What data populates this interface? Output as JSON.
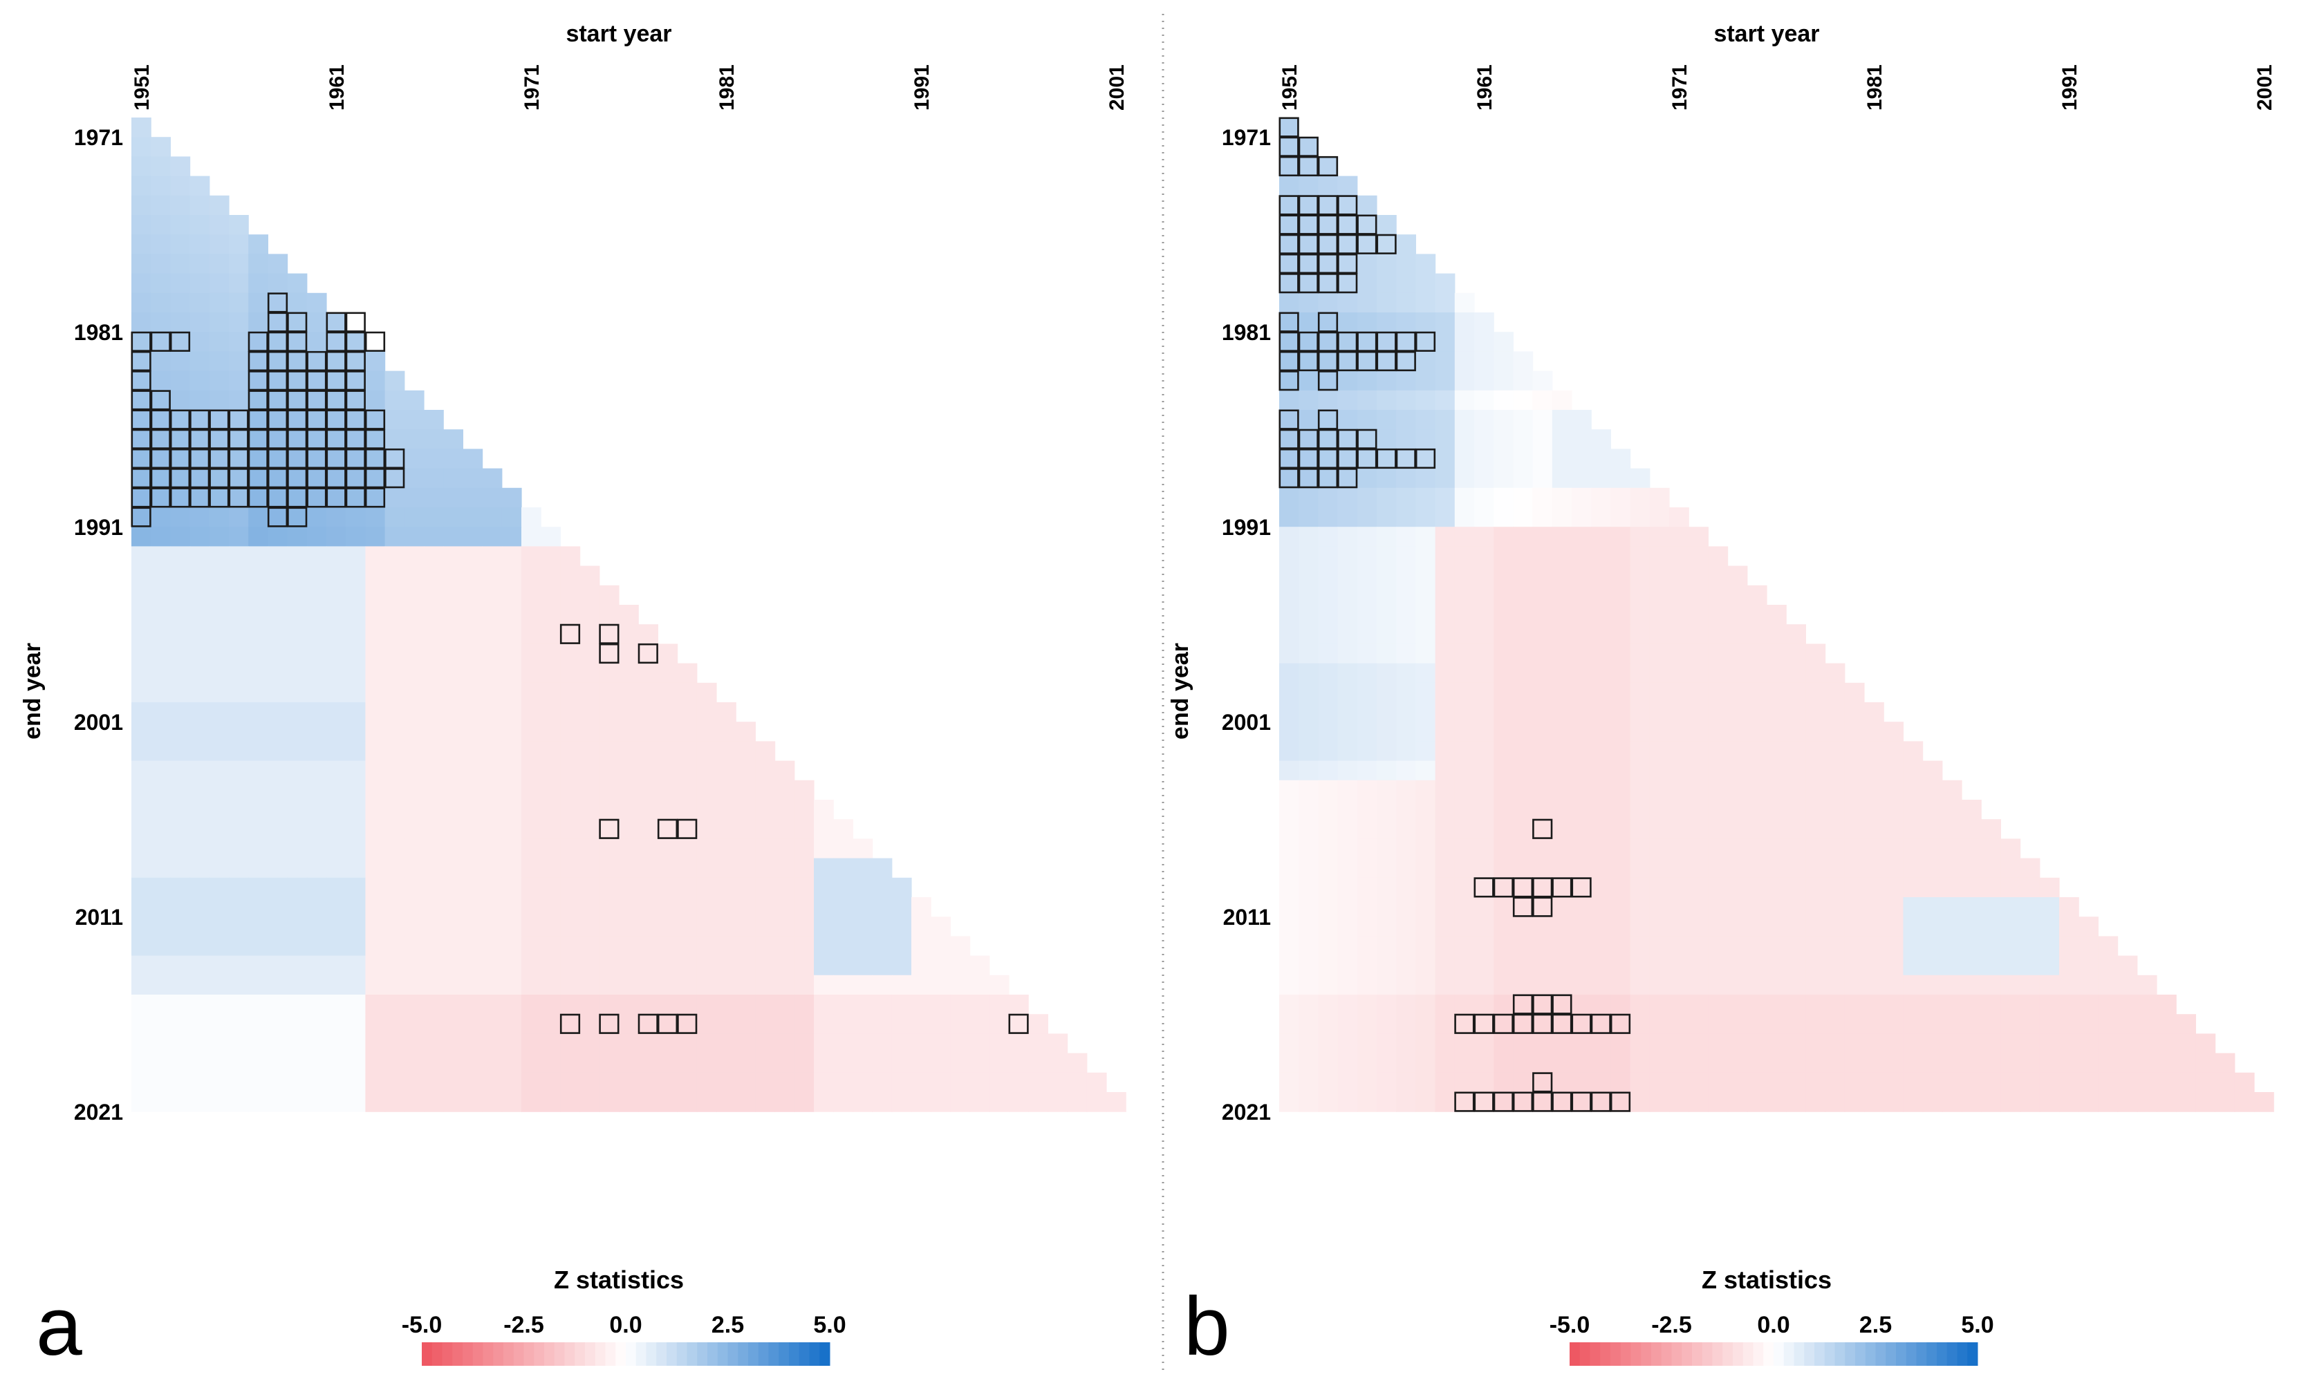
{
  "figure": {
    "panels": [
      {
        "panel_label": "a",
        "chart_data": {
          "type": "heatmap",
          "title": "",
          "xlabel": "start year",
          "ylabel": "end year",
          "x_range": [
            1951,
            2001
          ],
          "y_range": [
            1971,
            2021
          ],
          "x_ticks": [
            "1951",
            "1961",
            "1971",
            "1981",
            "1991",
            "2001"
          ],
          "y_ticks": [
            "1971",
            "1981",
            "1991",
            "2001",
            "2011",
            "2021"
          ],
          "colorbar_title": "Z statistics",
          "colorbar_ticks": [
            "-5.0",
            "-2.5",
            "0.0",
            "2.5",
            "5.0"
          ],
          "colorbar_range": [
            -5,
            5
          ],
          "significant_cells": [
            [
              1981,
              1951
            ],
            [
              1981,
              1952
            ],
            [
              1981,
              1953
            ],
            [
              1981,
              1957
            ],
            [
              1981,
              1958
            ],
            [
              1981,
              1959
            ],
            [
              1981,
              1961
            ],
            [
              1981,
              1962
            ],
            [
              1981,
              1963
            ],
            [
              1980,
              1958
            ],
            [
              1980,
              1959
            ],
            [
              1980,
              1961
            ],
            [
              1980,
              1962
            ],
            [
              1979,
              1958
            ],
            [
              1982,
              1951
            ],
            [
              1982,
              1957
            ],
            [
              1982,
              1958
            ],
            [
              1982,
              1959
            ],
            [
              1982,
              1960
            ],
            [
              1982,
              1961
            ],
            [
              1982,
              1962
            ],
            [
              1983,
              1951
            ],
            [
              1983,
              1957
            ],
            [
              1983,
              1958
            ],
            [
              1983,
              1959
            ],
            [
              1983,
              1960
            ],
            [
              1983,
              1961
            ],
            [
              1983,
              1962
            ],
            [
              1984,
              1951
            ],
            [
              1984,
              1952
            ],
            [
              1984,
              1957
            ],
            [
              1984,
              1958
            ],
            [
              1984,
              1959
            ],
            [
              1984,
              1960
            ],
            [
              1984,
              1961
            ],
            [
              1984,
              1962
            ],
            [
              1985,
              1951
            ],
            [
              1985,
              1952
            ],
            [
              1985,
              1953
            ],
            [
              1985,
              1954
            ],
            [
              1985,
              1955
            ],
            [
              1985,
              1956
            ],
            [
              1985,
              1957
            ],
            [
              1985,
              1958
            ],
            [
              1985,
              1959
            ],
            [
              1985,
              1960
            ],
            [
              1985,
              1961
            ],
            [
              1985,
              1962
            ],
            [
              1985,
              1963
            ],
            [
              1986,
              1951
            ],
            [
              1986,
              1952
            ],
            [
              1986,
              1953
            ],
            [
              1986,
              1954
            ],
            [
              1986,
              1955
            ],
            [
              1986,
              1956
            ],
            [
              1986,
              1957
            ],
            [
              1986,
              1958
            ],
            [
              1986,
              1959
            ],
            [
              1986,
              1960
            ],
            [
              1986,
              1961
            ],
            [
              1986,
              1962
            ],
            [
              1986,
              1963
            ],
            [
              1987,
              1951
            ],
            [
              1987,
              1952
            ],
            [
              1987,
              1953
            ],
            [
              1987,
              1954
            ],
            [
              1987,
              1955
            ],
            [
              1987,
              1956
            ],
            [
              1987,
              1957
            ],
            [
              1987,
              1958
            ],
            [
              1987,
              1959
            ],
            [
              1987,
              1960
            ],
            [
              1987,
              1961
            ],
            [
              1987,
              1962
            ],
            [
              1987,
              1963
            ],
            [
              1987,
              1964
            ],
            [
              1988,
              1951
            ],
            [
              1988,
              1952
            ],
            [
              1988,
              1953
            ],
            [
              1988,
              1954
            ],
            [
              1988,
              1955
            ],
            [
              1988,
              1956
            ],
            [
              1988,
              1957
            ],
            [
              1988,
              1958
            ],
            [
              1988,
              1959
            ],
            [
              1988,
              1960
            ],
            [
              1988,
              1961
            ],
            [
              1988,
              1962
            ],
            [
              1988,
              1963
            ],
            [
              1988,
              1964
            ],
            [
              1989,
              1951
            ],
            [
              1989,
              1952
            ],
            [
              1989,
              1953
            ],
            [
              1989,
              1954
            ],
            [
              1989,
              1955
            ],
            [
              1989,
              1956
            ],
            [
              1989,
              1957
            ],
            [
              1989,
              1958
            ],
            [
              1989,
              1959
            ],
            [
              1989,
              1960
            ],
            [
              1989,
              1961
            ],
            [
              1989,
              1962
            ],
            [
              1989,
              1963
            ],
            [
              1990,
              1951
            ],
            [
              1990,
              1958
            ],
            [
              1990,
              1959
            ],
            [
              1996,
              1973
            ],
            [
              1996,
              1975
            ],
            [
              1997,
              1975
            ],
            [
              1997,
              1977
            ],
            [
              2006,
              1975
            ],
            [
              2006,
              1978
            ],
            [
              2006,
              1979
            ],
            [
              2016,
              1973
            ],
            [
              2016,
              1975
            ],
            [
              2016,
              1977
            ],
            [
              2016,
              1978
            ],
            [
              2016,
              1979
            ],
            [
              2016,
              1996
            ]
          ]
        }
      },
      {
        "panel_label": "b",
        "chart_data": {
          "type": "heatmap",
          "title": "",
          "xlabel": "start year",
          "ylabel": "end year",
          "x_range": [
            1951,
            2001
          ],
          "y_range": [
            1971,
            2021
          ],
          "x_ticks": [
            "1951",
            "1961",
            "1971",
            "1981",
            "1991",
            "2001"
          ],
          "y_ticks": [
            "1971",
            "1981",
            "1991",
            "2001",
            "2011",
            "2021"
          ],
          "colorbar_title": "Z statistics",
          "colorbar_ticks": [
            "-5.0",
            "-2.5",
            "0.0",
            "2.5",
            "5.0"
          ],
          "colorbar_range": [
            -5,
            5
          ],
          "significant_cells": [
            [
              1970,
              1951
            ],
            [
              1971,
              1951
            ],
            [
              1971,
              1952
            ],
            [
              1972,
              1951
            ],
            [
              1972,
              1952
            ],
            [
              1972,
              1953
            ],
            [
              1974,
              1951
            ],
            [
              1974,
              1952
            ],
            [
              1974,
              1953
            ],
            [
              1974,
              1954
            ],
            [
              1975,
              1951
            ],
            [
              1975,
              1952
            ],
            [
              1975,
              1953
            ],
            [
              1975,
              1954
            ],
            [
              1975,
              1955
            ],
            [
              1976,
              1951
            ],
            [
              1976,
              1952
            ],
            [
              1976,
              1953
            ],
            [
              1976,
              1954
            ],
            [
              1976,
              1955
            ],
            [
              1976,
              1956
            ],
            [
              1977,
              1951
            ],
            [
              1977,
              1952
            ],
            [
              1977,
              1953
            ],
            [
              1977,
              1954
            ],
            [
              1978,
              1951
            ],
            [
              1978,
              1952
            ],
            [
              1978,
              1953
            ],
            [
              1978,
              1954
            ],
            [
              1980,
              1951
            ],
            [
              1980,
              1953
            ],
            [
              1981,
              1951
            ],
            [
              1981,
              1952
            ],
            [
              1981,
              1953
            ],
            [
              1981,
              1954
            ],
            [
              1981,
              1955
            ],
            [
              1981,
              1956
            ],
            [
              1981,
              1957
            ],
            [
              1981,
              1958
            ],
            [
              1982,
              1951
            ],
            [
              1982,
              1952
            ],
            [
              1982,
              1953
            ],
            [
              1982,
              1954
            ],
            [
              1982,
              1955
            ],
            [
              1982,
              1956
            ],
            [
              1982,
              1957
            ],
            [
              1983,
              1951
            ],
            [
              1983,
              1953
            ],
            [
              1985,
              1951
            ],
            [
              1985,
              1953
            ],
            [
              1986,
              1951
            ],
            [
              1986,
              1952
            ],
            [
              1986,
              1953
            ],
            [
              1986,
              1954
            ],
            [
              1986,
              1955
            ],
            [
              1987,
              1951
            ],
            [
              1987,
              1952
            ],
            [
              1987,
              1953
            ],
            [
              1987,
              1954
            ],
            [
              1987,
              1955
            ],
            [
              1987,
              1956
            ],
            [
              1987,
              1957
            ],
            [
              1987,
              1958
            ],
            [
              1988,
              1951
            ],
            [
              1988,
              1952
            ],
            [
              1988,
              1953
            ],
            [
              1988,
              1954
            ],
            [
              2006,
              1964
            ],
            [
              2009,
              1961
            ],
            [
              2009,
              1962
            ],
            [
              2009,
              1963
            ],
            [
              2009,
              1964
            ],
            [
              2009,
              1965
            ],
            [
              2009,
              1966
            ],
            [
              2010,
              1963
            ],
            [
              2010,
              1964
            ],
            [
              2015,
              1963
            ],
            [
              2015,
              1964
            ],
            [
              2015,
              1965
            ],
            [
              2016,
              1960
            ],
            [
              2016,
              1961
            ],
            [
              2016,
              1962
            ],
            [
              2016,
              1963
            ],
            [
              2016,
              1964
            ],
            [
              2016,
              1965
            ],
            [
              2016,
              1966
            ],
            [
              2016,
              1967
            ],
            [
              2016,
              1968
            ],
            [
              2019,
              1964
            ],
            [
              2020,
              1960
            ],
            [
              2020,
              1961
            ],
            [
              2020,
              1962
            ],
            [
              2020,
              1963
            ],
            [
              2020,
              1964
            ],
            [
              2020,
              1965
            ],
            [
              2020,
              1966
            ],
            [
              2020,
              1967
            ],
            [
              2020,
              1968
            ]
          ]
        }
      }
    ]
  }
}
